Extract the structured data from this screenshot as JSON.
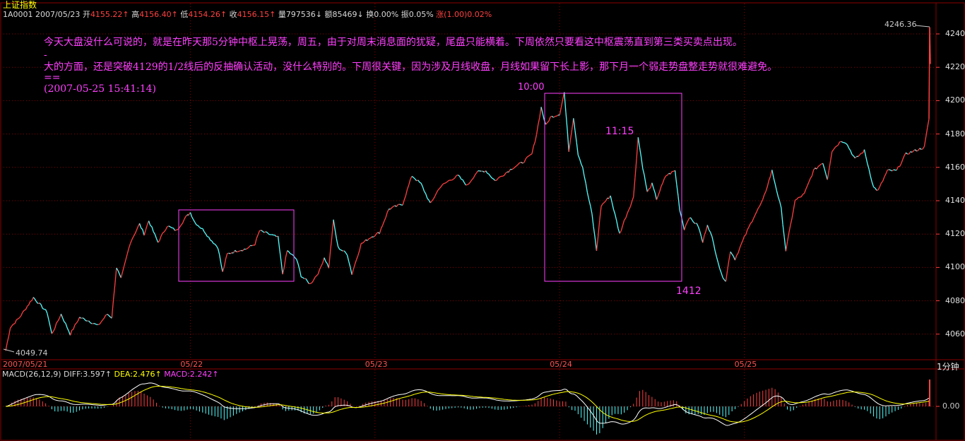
{
  "header": {
    "name": "上证指数",
    "code": "1A0001",
    "date": "2007/05/23",
    "open_label": "开",
    "open_value": "4155.22↑",
    "high_label": "高",
    "high_value": "4156.40↑",
    "low_label": "低",
    "low_value": "4154.26↑",
    "close_label": "收",
    "close_value": "4156.15↑",
    "volume_label": "量",
    "volume_value": "797536↓",
    "amount_label": "额",
    "amount_value": "85469↓",
    "turnover_label": "换",
    "turnover_value": "0.00%",
    "amplitude_label": "振",
    "amplitude_value": "0.05%",
    "change_label": "涨",
    "change_value": "(1.00)0.02%"
  },
  "comment": {
    "line1": "今天大盘没什么可说的，就是在昨天那5分钟中枢上晃荡，周五，由于对周末消息面的犹疑，尾盘只能横着。下周依然只要看这中枢震荡直到第三类买卖点出现。",
    "line2": "-",
    "line3": "大的方面，还是突破4129的1/2线后的反抽确认活动，没什么特别的。下周很关键，因为涉及月线收盘，月线如果留下长上影，那下月一个弱走势盘整走势就很难避免。",
    "line4": "==",
    "line5": "(2007-05-25 15:41:14)"
  },
  "annotations": {
    "high_price": "4246.36",
    "low_price": "4049.74",
    "time_1000": "10:00",
    "time_1115": "11:15",
    "low_1412": "1412"
  },
  "period_label": "1分钟",
  "macd": {
    "title": "MACD(26,12,9)",
    "diff_label": "DIFF:",
    "diff_value": "3.597↑",
    "dea_label": "DEA:",
    "dea_value": "2.476↑",
    "macd_label": "MACD:",
    "macd_value": "2.242↑",
    "zero_label": "0.00"
  },
  "colors": {
    "up": "#ff4040",
    "down": "#54ffff",
    "grid": "#8b0000",
    "diff": "#ffffff",
    "dea": "#ffff00",
    "box": "#ff40ff"
  },
  "chart_data": {
    "type": "line",
    "title": "上证指数",
    "xlabel": "",
    "ylabel": "",
    "period": "1分钟",
    "ylim": [
      4049,
      4250
    ],
    "yticks": [
      4060.0,
      4080.0,
      4100.0,
      4120.0,
      4140.0,
      4160.0,
      4180.0,
      4200.0,
      4220.0,
      4240.0
    ],
    "ytick_labels": [
      "4060.0",
      "4080.0",
      "4100.0",
      "4120.0",
      "4140.0",
      "4160.0",
      "4180.0",
      "4200.0",
      "4220.0",
      "4240.0"
    ],
    "date_labels": [
      "2007/05/21",
      "05/22",
      "05/23",
      "05/24",
      "05/25"
    ],
    "date_positions": [
      0,
      40,
      80,
      120,
      160
    ],
    "n_bars": 200,
    "price_keypoints": [
      [
        0,
        4050
      ],
      [
        1,
        4064
      ],
      [
        3,
        4070
      ],
      [
        5,
        4078
      ],
      [
        6,
        4082
      ],
      [
        8,
        4076
      ],
      [
        9,
        4073
      ],
      [
        10,
        4060
      ],
      [
        12,
        4072
      ],
      [
        14,
        4060
      ],
      [
        16,
        4070
      ],
      [
        18,
        4068
      ],
      [
        20,
        4065
      ],
      [
        22,
        4072
      ],
      [
        23,
        4070
      ],
      [
        24,
        4100
      ],
      [
        25,
        4093
      ],
      [
        27,
        4115
      ],
      [
        29,
        4126
      ],
      [
        30,
        4120
      ],
      [
        31,
        4128
      ],
      [
        33,
        4115
      ],
      [
        35,
        4125
      ],
      [
        37,
        4122
      ],
      [
        39,
        4130
      ],
      [
        40,
        4133
      ],
      [
        41,
        4127
      ],
      [
        43,
        4122
      ],
      [
        44,
        4118
      ],
      [
        46,
        4112
      ],
      [
        47,
        4097
      ],
      [
        48,
        4108
      ],
      [
        50,
        4110
      ],
      [
        52,
        4111
      ],
      [
        54,
        4114
      ],
      [
        55,
        4122
      ],
      [
        57,
        4120
      ],
      [
        59,
        4118
      ],
      [
        60,
        4096
      ],
      [
        61,
        4110
      ],
      [
        63,
        4105
      ],
      [
        64,
        4095
      ],
      [
        66,
        4090
      ],
      [
        68,
        4098
      ],
      [
        69,
        4106
      ],
      [
        70,
        4100
      ],
      [
        71,
        4128
      ],
      [
        72,
        4112
      ],
      [
        74,
        4108
      ],
      [
        75,
        4096
      ],
      [
        77,
        4114
      ],
      [
        79,
        4118
      ],
      [
        81,
        4121
      ],
      [
        83,
        4135
      ],
      [
        86,
        4138
      ],
      [
        88,
        4155
      ],
      [
        90,
        4150
      ],
      [
        92,
        4138
      ],
      [
        94,
        4148
      ],
      [
        96,
        4152
      ],
      [
        98,
        4155
      ],
      [
        100,
        4149
      ],
      [
        102,
        4157
      ],
      [
        104,
        4158
      ],
      [
        106,
        4152
      ],
      [
        108,
        4156
      ],
      [
        110,
        4160
      ],
      [
        112,
        4163
      ],
      [
        114,
        4168
      ],
      [
        115,
        4180
      ],
      [
        116,
        4196
      ],
      [
        117,
        4185
      ],
      [
        118,
        4190
      ],
      [
        120,
        4192
      ],
      [
        121,
        4205
      ],
      [
        122,
        4170
      ],
      [
        123,
        4190
      ],
      [
        124,
        4168
      ],
      [
        125,
        4160
      ],
      [
        126,
        4145
      ],
      [
        127,
        4132
      ],
      [
        128,
        4110
      ],
      [
        129,
        4137
      ],
      [
        131,
        4143
      ],
      [
        133,
        4120
      ],
      [
        134,
        4128
      ],
      [
        136,
        4142
      ],
      [
        137,
        4178
      ],
      [
        138,
        4160
      ],
      [
        139,
        4145
      ],
      [
        140,
        4150
      ],
      [
        141,
        4141
      ],
      [
        143,
        4155
      ],
      [
        145,
        4158
      ],
      [
        146,
        4135
      ],
      [
        147,
        4123
      ],
      [
        148,
        4130
      ],
      [
        150,
        4125
      ],
      [
        151,
        4115
      ],
      [
        152,
        4126
      ],
      [
        153,
        4118
      ],
      [
        155,
        4096
      ],
      [
        156,
        4092
      ],
      [
        157,
        4110
      ],
      [
        158,
        4105
      ],
      [
        160,
        4118
      ],
      [
        162,
        4130
      ],
      [
        164,
        4140
      ],
      [
        166,
        4158
      ],
      [
        168,
        4135
      ],
      [
        169,
        4110
      ],
      [
        171,
        4140
      ],
      [
        173,
        4144
      ],
      [
        175,
        4158
      ],
      [
        177,
        4163
      ],
      [
        178,
        4153
      ],
      [
        179,
        4170
      ],
      [
        181,
        4176
      ],
      [
        182,
        4175
      ],
      [
        184,
        4165
      ],
      [
        186,
        4170
      ],
      [
        188,
        4148
      ],
      [
        189,
        4146
      ],
      [
        191,
        4158
      ],
      [
        193,
        4158
      ],
      [
        195,
        4168
      ],
      [
        197,
        4170
      ],
      [
        199,
        4172
      ],
      [
        200,
        4189
      ]
    ]
  }
}
